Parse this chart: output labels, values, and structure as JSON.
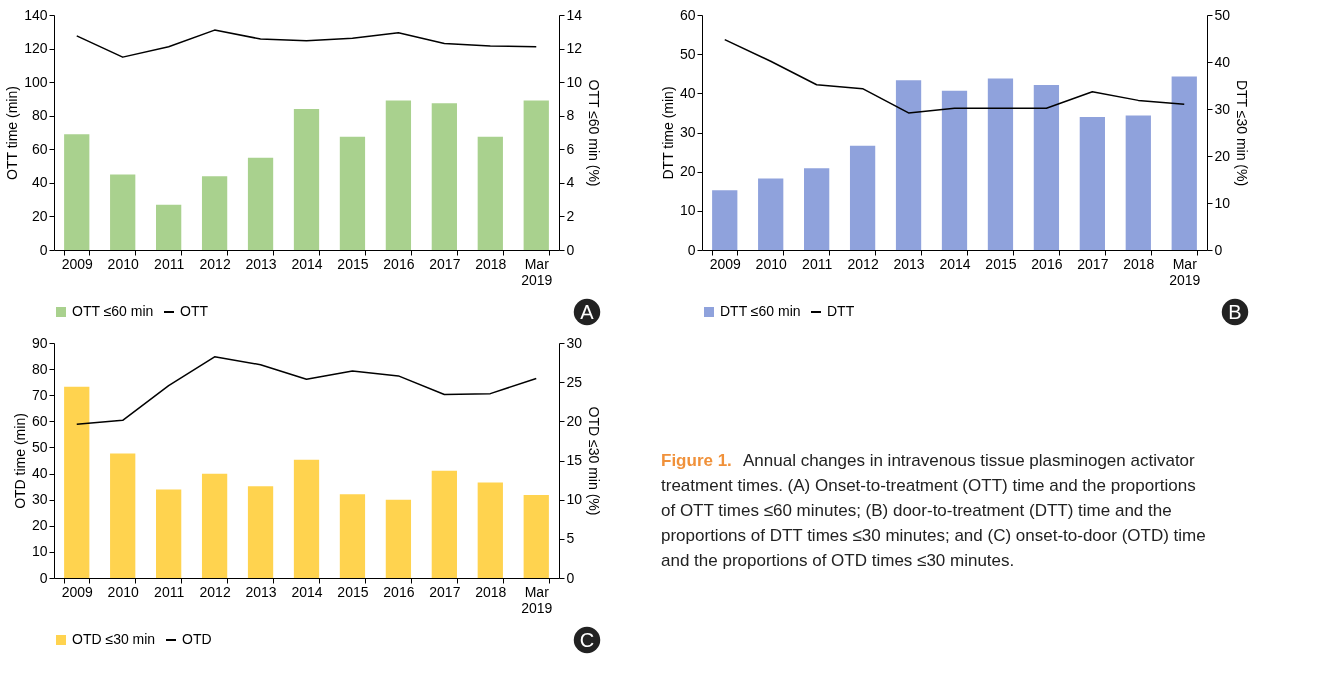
{
  "chart_data": [
    {
      "type": "bar",
      "categories": [
        "2009",
        "2010",
        "2011",
        "2012",
        "2013",
        "2014",
        "2015",
        "2016",
        "2017",
        "2018",
        "Mar 2019"
      ],
      "ylabel": "OTT time (min)",
      "y2label": "OTT ≤60 min (%)",
      "ylim": [
        0,
        140
      ],
      "yticks": [
        0,
        20,
        40,
        60,
        80,
        100,
        120,
        140
      ],
      "y2lim": [
        0,
        14
      ],
      "y2ticks": [
        0,
        2,
        4,
        6,
        8,
        10,
        12,
        14
      ],
      "legend": "bottom",
      "annotations": [
        "A"
      ],
      "series": [
        {
          "name": "OTT ≤60 min",
          "type": "bar",
          "axis": "y2",
          "color": "#a9d18e",
          "values": [
            6.9,
            4.5,
            2.7,
            4.4,
            5.5,
            8.4,
            6.75,
            8.9,
            8.75,
            6.75,
            8.9
          ]
        },
        {
          "name": "OTT",
          "type": "line",
          "color": "#000000",
          "values": [
            127.6,
            114.9,
            121.1,
            131,
            125.7,
            124.6,
            126.2,
            129.4,
            123,
            121.6,
            121.1
          ]
        }
      ]
    },
    {
      "type": "bar",
      "categories": [
        "2009",
        "2010",
        "2011",
        "2012",
        "2013",
        "2014",
        "2015",
        "2016",
        "2017",
        "2018",
        "Mar 2019"
      ],
      "ylabel": "DTT time (min)",
      "y2label": "DTT ≤30 min (%)",
      "ylim": [
        0,
        60
      ],
      "yticks": [
        0,
        10,
        20,
        30,
        40,
        50,
        60
      ],
      "y2lim": [
        0,
        50
      ],
      "y2ticks": [
        0,
        10,
        20,
        30,
        40,
        50
      ],
      "legend": "bottom",
      "annotations": [
        "B"
      ],
      "series": [
        {
          "name": "DTT ≤60 min",
          "type": "bar",
          "axis": "y2",
          "color": "#8fa2dc",
          "values": [
            12.7,
            15.2,
            17.4,
            22.2,
            36.1,
            33.9,
            36.5,
            35.1,
            28.3,
            28.6,
            36.9
          ]
        },
        {
          "name": "DTT",
          "type": "line",
          "color": "#000000",
          "values": [
            53.7,
            48.2,
            42.2,
            41.2,
            35.0,
            36.2,
            36.2,
            36.2,
            40.4,
            38.2,
            37.2
          ]
        }
      ]
    },
    {
      "type": "bar",
      "categories": [
        "2009",
        "2010",
        "2011",
        "2012",
        "2013",
        "2014",
        "2015",
        "2016",
        "2017",
        "2018",
        "Mar 2019"
      ],
      "ylabel": "OTD time (min)",
      "y2label": "OTD ≤30 min (%)",
      "ylim": [
        0,
        90
      ],
      "yticks": [
        0,
        10,
        20,
        30,
        40,
        50,
        60,
        70,
        80,
        90
      ],
      "y2lim": [
        0,
        30
      ],
      "y2ticks": [
        0,
        5,
        10,
        15,
        20,
        25,
        30
      ],
      "legend": "bottom",
      "annotations": [
        "C"
      ],
      "series": [
        {
          "name": "OTD ≤30 min",
          "type": "bar",
          "axis": "y2",
          "color": "#ffd34f",
          "values": [
            24.4,
            15.9,
            11.3,
            13.3,
            11.7,
            15.1,
            10.7,
            10.0,
            13.7,
            12.2,
            10.6
          ]
        },
        {
          "name": "OTD",
          "type": "line",
          "color": "#000000",
          "values": [
            58.9,
            60.4,
            73.7,
            84.7,
            81.7,
            76.1,
            79.3,
            77.4,
            70.3,
            70.6,
            76.4
          ]
        }
      ]
    },
    {
      "type": "other",
      "annotations": [
        "Figure 1.",
        "Annual changes in intravenous tissue plasminogen activator treatment times. (A) Onset-to-treatment (OTT) time and the proportions of OTT times ≤60 minutes; (B) door-to-treatment (DTT) time and the proportions of DTT times ≤30 minutes; and (C) onset-to-door (OTD) time and the proportions of OTD times ≤30 minutes."
      ]
    }
  ]
}
